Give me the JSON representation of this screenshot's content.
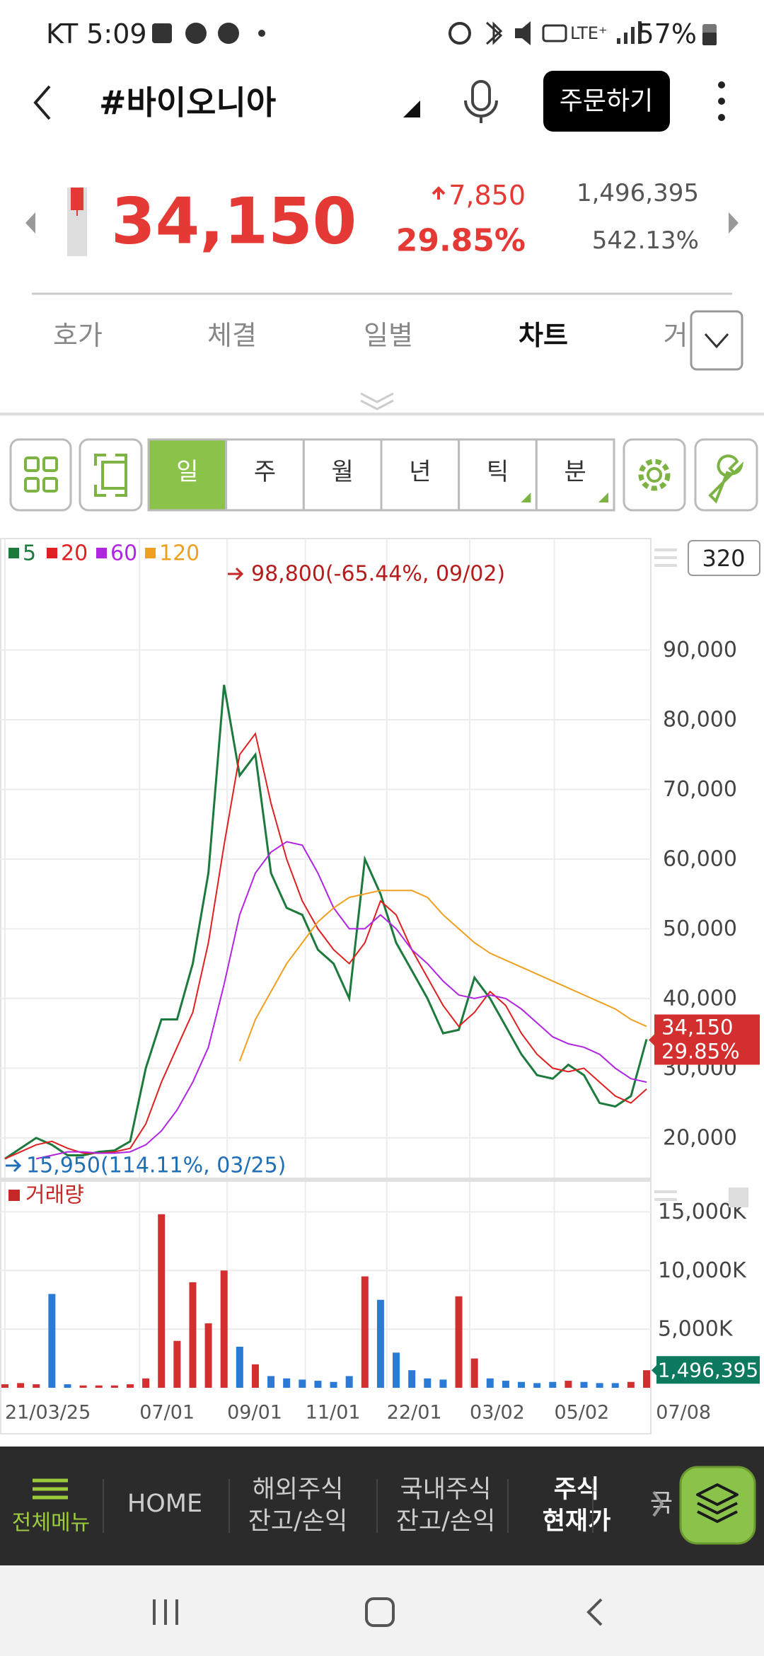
{
  "status_bar": {
    "carrier_time": "KT 5:09",
    "battery": "57%"
  },
  "header": {
    "title": "#바이오니아",
    "order_button": "주문하기"
  },
  "quote": {
    "price": "34,150",
    "change": "7,850",
    "change_rate": "29.85%",
    "volume": "1,496,395",
    "turnover_rate": "542.13%"
  },
  "tabs": [
    "호가",
    "체결",
    "일별",
    "차트",
    "거"
  ],
  "active_tab": 3,
  "periods": [
    "일",
    "주",
    "월",
    "년",
    "틱",
    "분"
  ],
  "active_period": 0,
  "chart_count": "320",
  "chart_data": [
    {
      "type": "line",
      "series": [
        {
          "name": "5",
          "color": "#1b7a3c",
          "values": [
            17000,
            18500,
            20000,
            19000,
            17500,
            17500,
            18000,
            18200,
            19500,
            30000,
            37000,
            37000,
            45000,
            58000,
            85000,
            72000,
            75000,
            58000,
            53000,
            52000,
            47000,
            45000,
            40000,
            60000,
            55000,
            48000,
            44000,
            40000,
            35000,
            35500,
            43000,
            40000,
            36000,
            32000,
            29000,
            28500,
            30500,
            29000,
            25000,
            24500,
            26000,
            34150
          ]
        },
        {
          "name": "20",
          "color": "#e02020",
          "values": [
            17000,
            18000,
            19000,
            19500,
            18500,
            17800,
            17800,
            18000,
            18500,
            22000,
            28000,
            33000,
            38000,
            48000,
            62000,
            75000,
            78000,
            68000,
            60000,
            54000,
            50000,
            47000,
            45000,
            48000,
            54000,
            52000,
            47000,
            43000,
            39000,
            36000,
            38000,
            41000,
            39000,
            35000,
            32000,
            30000,
            29500,
            30000,
            28000,
            26000,
            25000,
            27000
          ]
        },
        {
          "name": "60",
          "color": "#b026e0",
          "values": [
            null,
            null,
            17000,
            17500,
            18000,
            18000,
            17800,
            17800,
            18000,
            19000,
            21000,
            24000,
            28000,
            33000,
            42000,
            52000,
            58000,
            61000,
            62500,
            62000,
            58000,
            53000,
            50000,
            50000,
            52000,
            50000,
            47000,
            45000,
            42500,
            40500,
            40000,
            40500,
            40000,
            38500,
            36500,
            34500,
            33500,
            33000,
            32000,
            30000,
            28500,
            28000
          ]
        },
        {
          "name": "120",
          "color": "#f0a020",
          "values": [
            null,
            null,
            null,
            null,
            null,
            null,
            null,
            null,
            null,
            null,
            null,
            null,
            null,
            null,
            null,
            31000,
            37000,
            41000,
            45000,
            48000,
            51000,
            53000,
            54500,
            55000,
            55500,
            55500,
            55500,
            54500,
            52000,
            50000,
            48000,
            46500,
            45500,
            44500,
            43500,
            42500,
            41500,
            40500,
            39500,
            38500,
            37000,
            36000
          ]
        }
      ],
      "ylim": [
        14400,
        106000
      ],
      "yticks": [
        {
          "value": 20000,
          "label": "20,000"
        },
        {
          "value": 30000,
          "label": "30,000"
        },
        {
          "value": 40000,
          "label": "40,000"
        },
        {
          "value": 50000,
          "label": "50,000"
        },
        {
          "value": 60000,
          "label": "60,000"
        },
        {
          "value": 70000,
          "label": "70,000"
        },
        {
          "value": 80000,
          "label": "80,000"
        },
        {
          "value": 90000,
          "label": "90,000"
        }
      ],
      "xlim": [
        0,
        41
      ],
      "xticks": [
        {
          "value": 0,
          "label": "21/03/25"
        },
        {
          "value": 8.6,
          "label": "07/01"
        },
        {
          "value": 14.2,
          "label": "09/01"
        },
        {
          "value": 19.2,
          "label": "11/01"
        },
        {
          "value": 24.4,
          "label": "22/01"
        },
        {
          "value": 29.7,
          "label": "03/02"
        },
        {
          "value": 35.1,
          "label": "05/02"
        },
        {
          "value": 41.6,
          "label": "07/08"
        }
      ],
      "annotations": [
        "98,800(-65.44%, 09/02)",
        "15,950(114.11%, 03/25)"
      ],
      "price_tag": [
        "34,150",
        "29.85%"
      ],
      "grid": true
    },
    {
      "type": "bar",
      "title": "거래량",
      "values": [
        300,
        400,
        300,
        8000,
        300,
        200,
        200,
        200,
        300,
        800,
        14800,
        4000,
        9000,
        5500,
        10000,
        3500,
        2000,
        1000,
        800,
        700,
        600,
        500,
        1000,
        9500,
        7500,
        3000,
        1500,
        800,
        700,
        7800,
        2500,
        800,
        600,
        500,
        400,
        500,
        600,
        500,
        400,
        400,
        500,
        1496.395
      ],
      "value_labels": [
        null,
        null,
        null,
        null,
        null,
        null,
        null,
        null,
        null,
        null,
        null,
        null,
        null,
        null,
        null,
        null,
        null,
        null,
        null,
        null,
        null,
        null,
        null,
        null,
        null,
        null,
        null,
        null,
        null,
        null,
        null,
        null,
        null,
        null,
        null,
        null,
        null,
        null,
        null,
        null,
        null,
        "1,496,395"
      ],
      "ylim": [
        0,
        17500
      ],
      "yticks": [
        {
          "value": 5000,
          "label": "5,000K"
        },
        {
          "value": 10000,
          "label": "10,000K"
        },
        {
          "value": 15000,
          "label": "15,000K"
        }
      ],
      "color": "#d32f2f",
      "down_color": "#2b7bd6",
      "grid": true
    }
  ],
  "bottom_nav": {
    "menu": "전체메뉴",
    "items": [
      [
        "HOME"
      ],
      [
        "해외주식",
        "잔고/손익"
      ],
      [
        "국내주식",
        "잔고/손익"
      ],
      [
        "주식",
        "현재가"
      ],
      [
        "국"
      ]
    ],
    "active_item": 3
  }
}
